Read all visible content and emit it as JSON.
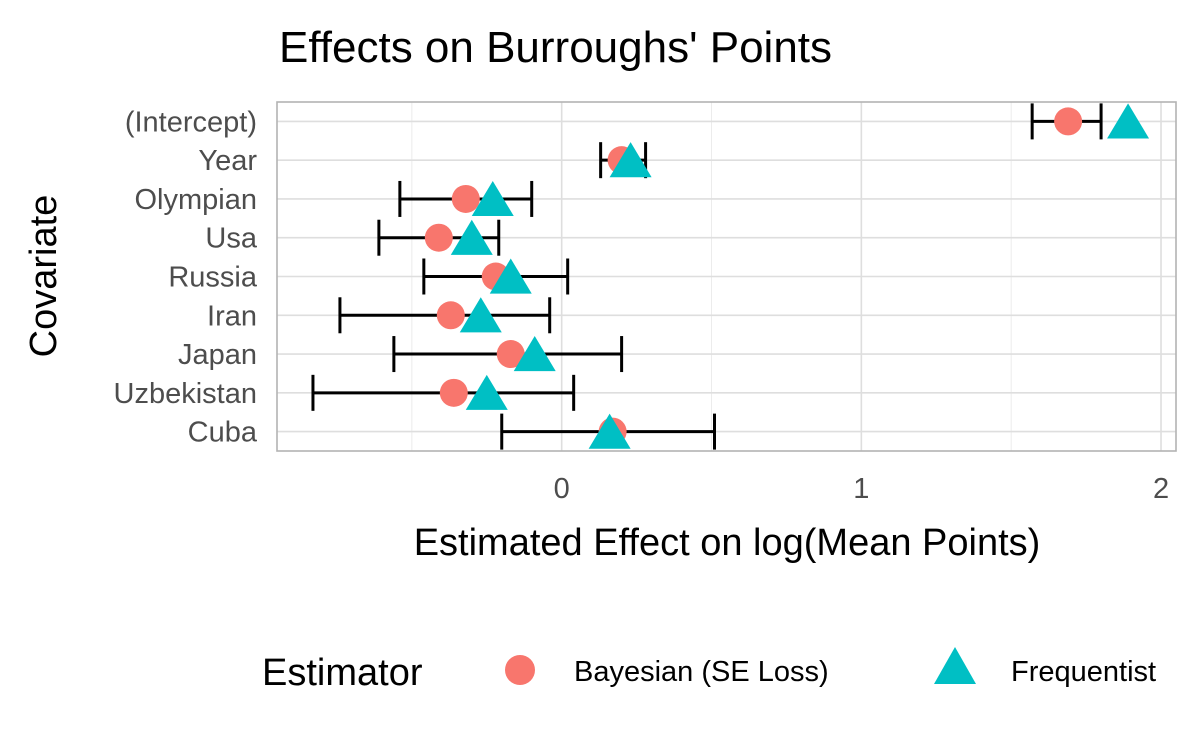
{
  "chart_data": {
    "type": "scatter",
    "title": "Effects on Burroughs' Points",
    "xlabel": "Estimated Effect on log(Mean Points)",
    "ylabel": "Covariate",
    "xlim": [
      -0.95,
      2.05
    ],
    "x_ticks": [
      0,
      1,
      2
    ],
    "x_tick_labels": [
      "0",
      "1",
      "2"
    ],
    "grid": true,
    "categories": [
      "(Intercept)",
      "Year",
      "Olympian",
      "Usa",
      "Russia",
      "Iran",
      "Japan",
      "Uzbekistan",
      "Cuba"
    ],
    "series": [
      {
        "name": "Bayesian (SE Loss)",
        "marker": "circle",
        "color": "#F8766D",
        "values": [
          1.69,
          0.2,
          -0.32,
          -0.41,
          -0.22,
          -0.37,
          -0.17,
          -0.36,
          0.17
        ],
        "lower": [
          1.57,
          0.13,
          -0.54,
          -0.61,
          -0.46,
          -0.74,
          -0.56,
          -0.83,
          -0.2
        ],
        "upper": [
          1.8,
          0.28,
          -0.1,
          -0.21,
          0.02,
          -0.04,
          0.2,
          0.04,
          0.51
        ]
      },
      {
        "name": "Frequentist",
        "marker": "triangle",
        "color": "#00BFC4",
        "values": [
          1.89,
          0.23,
          -0.23,
          -0.3,
          -0.17,
          -0.27,
          -0.09,
          -0.25,
          0.16
        ]
      }
    ],
    "legend": {
      "title": "Estimator",
      "position": "bottom"
    }
  }
}
